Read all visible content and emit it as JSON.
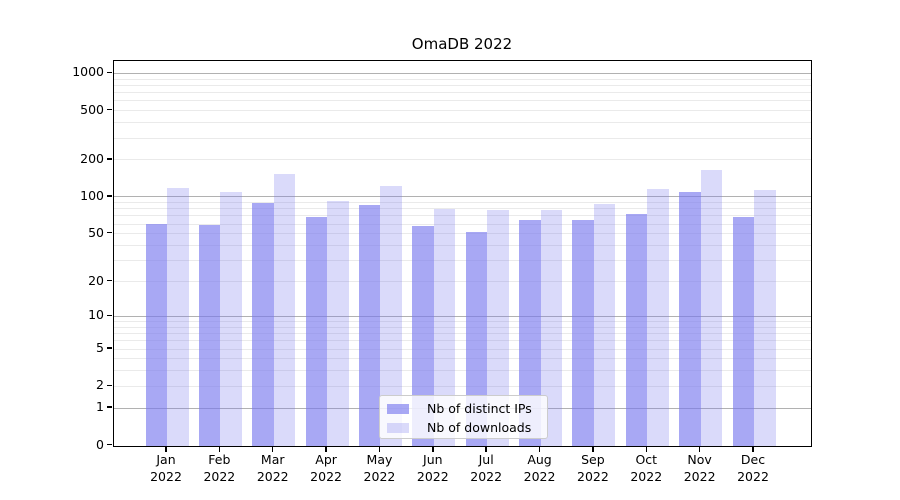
{
  "chart_data": {
    "type": "bar",
    "title": "OmaDB 2022",
    "x_categories": [
      "Jan 2022",
      "Feb 2022",
      "Mar 2022",
      "Apr 2022",
      "May 2022",
      "Jun 2022",
      "Jul 2022",
      "Aug 2022",
      "Sep 2022",
      "Oct 2022",
      "Nov 2022",
      "Dec 2022"
    ],
    "series": [
      {
        "name": "Nb of distinct IPs",
        "color": "rgba(119,119,238,0.64)",
        "values": [
          61,
          60,
          91,
          69,
          87,
          58,
          52,
          65,
          66,
          74,
          110,
          69
        ]
      },
      {
        "name": "Nb of downloads",
        "color": "rgba(119,119,238,0.27)",
        "values": [
          119,
          110,
          155,
          94,
          125,
          80,
          79,
          79,
          89,
          118,
          167,
          114
        ]
      }
    ],
    "y_axis": {
      "scale": "pseudo-log (log10 of 1+x)",
      "tick_values": [
        0,
        1,
        2,
        5,
        10,
        20,
        50,
        100,
        200,
        500,
        1000
      ],
      "tick_labels": [
        "0",
        "1",
        "2",
        "5",
        "10",
        "20",
        "50",
        "100",
        "200",
        "500",
        "1000"
      ],
      "major_gridlines": [
        1,
        10,
        100,
        1000
      ],
      "minor_gridlines": [
        2,
        3,
        4,
        5,
        6,
        7,
        8,
        9,
        20,
        30,
        40,
        50,
        60,
        70,
        80,
        90,
        200,
        300,
        400,
        500,
        600,
        700,
        800,
        900
      ],
      "range": [
        0,
        1260
      ],
      "grid": true
    },
    "legend": {
      "position": "lower center",
      "entries": [
        "Nb of distinct IPs",
        "Nb of downloads"
      ]
    },
    "colors": {
      "bar_base": "#7777ee",
      "major_grid": "#b1b1b1",
      "minor_grid": "#eaeaea",
      "spine": "#000000"
    }
  }
}
